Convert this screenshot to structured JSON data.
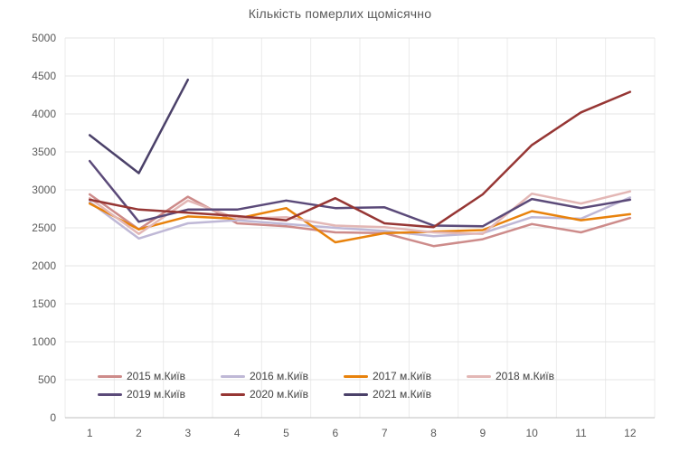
{
  "chart_data": {
    "type": "line",
    "title": "Кількість померлих щомісячно",
    "xlabel": "",
    "ylabel": "",
    "categories": [
      "1",
      "2",
      "3",
      "4",
      "5",
      "6",
      "7",
      "8",
      "9",
      "10",
      "11",
      "12"
    ],
    "series": [
      {
        "name": "2015 м.Київ",
        "color": "#cd8b8a",
        "values": [
          2940,
          2480,
          2910,
          2560,
          2520,
          2440,
          2430,
          2260,
          2350,
          2550,
          2440,
          2630
        ]
      },
      {
        "name": "2016 м.Київ",
        "color": "#bfb8d6",
        "values": [
          2840,
          2360,
          2560,
          2600,
          2550,
          2500,
          2460,
          2390,
          2430,
          2640,
          2620,
          2900
        ]
      },
      {
        "name": "2017 м.Київ",
        "color": "#e8820c",
        "values": [
          2820,
          2480,
          2650,
          2620,
          2760,
          2310,
          2430,
          2450,
          2470,
          2720,
          2600,
          2680
        ]
      },
      {
        "name": "2018 м.Київ",
        "color": "#e3b7b5",
        "values": [
          2890,
          2420,
          2860,
          2620,
          2640,
          2530,
          2510,
          2440,
          2420,
          2950,
          2820,
          2980
        ]
      },
      {
        "name": "2019 м.Київ",
        "color": "#5b4a79",
        "values": [
          3380,
          2580,
          2740,
          2740,
          2860,
          2760,
          2770,
          2530,
          2520,
          2880,
          2760,
          2870
        ]
      },
      {
        "name": "2020 м.Київ",
        "color": "#963634",
        "values": [
          2870,
          2740,
          2700,
          2655,
          2600,
          2890,
          2560,
          2510,
          2940,
          3590,
          4020,
          4290
        ]
      },
      {
        "name": "2021 м.Київ",
        "color": "#4b4169",
        "values": [
          3720,
          3220,
          4450,
          null,
          null,
          null,
          null,
          null,
          null,
          null,
          null,
          null
        ]
      }
    ],
    "ylim": [
      0,
      5000
    ],
    "ytick_step": 500,
    "grid": true,
    "legend_position": "bottom-inside",
    "legend_rows": [
      [
        0,
        1,
        2,
        3
      ],
      [
        4,
        5,
        6
      ]
    ]
  },
  "style": {
    "title_color": "#595959",
    "tick_color": "#595959",
    "legend_text_color": "#404040",
    "gridline_color": "#e4e4e4",
    "vgridline_color": "#ebebeb",
    "axis_line_color": "#bfbfbf",
    "background": "#ffffff"
  }
}
